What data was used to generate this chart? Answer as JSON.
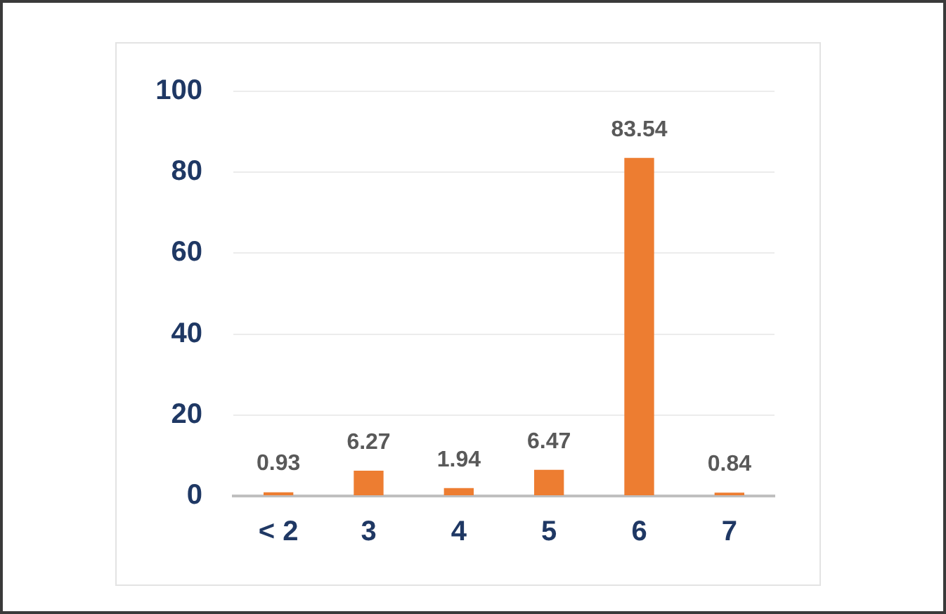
{
  "chart_data": {
    "type": "bar",
    "categories": [
      "< 2",
      "3",
      "4",
      "5",
      "6",
      "7"
    ],
    "values": [
      0.93,
      6.27,
      1.94,
      6.47,
      83.54,
      0.84
    ],
    "color": "#ed7d31",
    "ylim": [
      0,
      100
    ],
    "yticks": [
      0,
      20,
      40,
      60,
      80,
      100
    ],
    "grid": "y",
    "data_labels": true
  }
}
